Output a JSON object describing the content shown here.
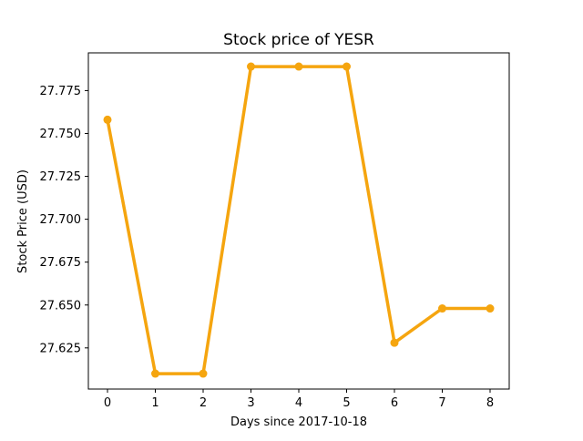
{
  "chart_data": {
    "type": "line",
    "title": "Stock price of YESR",
    "xlabel": "Days since 2017-10-18",
    "ylabel": "Stock Price (USD)",
    "x": [
      0,
      1,
      2,
      3,
      4,
      5,
      6,
      7,
      8
    ],
    "series": [
      {
        "values": [
          27.758,
          27.61,
          27.61,
          27.789,
          27.789,
          27.789,
          27.628,
          27.648,
          27.648
        ],
        "color": "#f5a50f",
        "marker": "circle"
      }
    ],
    "xticks": [
      "0",
      "1",
      "2",
      "3",
      "4",
      "5",
      "6",
      "7",
      "8"
    ],
    "yticks": [
      "27.625",
      "27.650",
      "27.675",
      "27.700",
      "27.725",
      "27.750",
      "27.775"
    ],
    "xlim": [
      -0.4,
      8.4
    ],
    "ylim": [
      27.601,
      27.797
    ],
    "grid": false,
    "legend": "none"
  }
}
